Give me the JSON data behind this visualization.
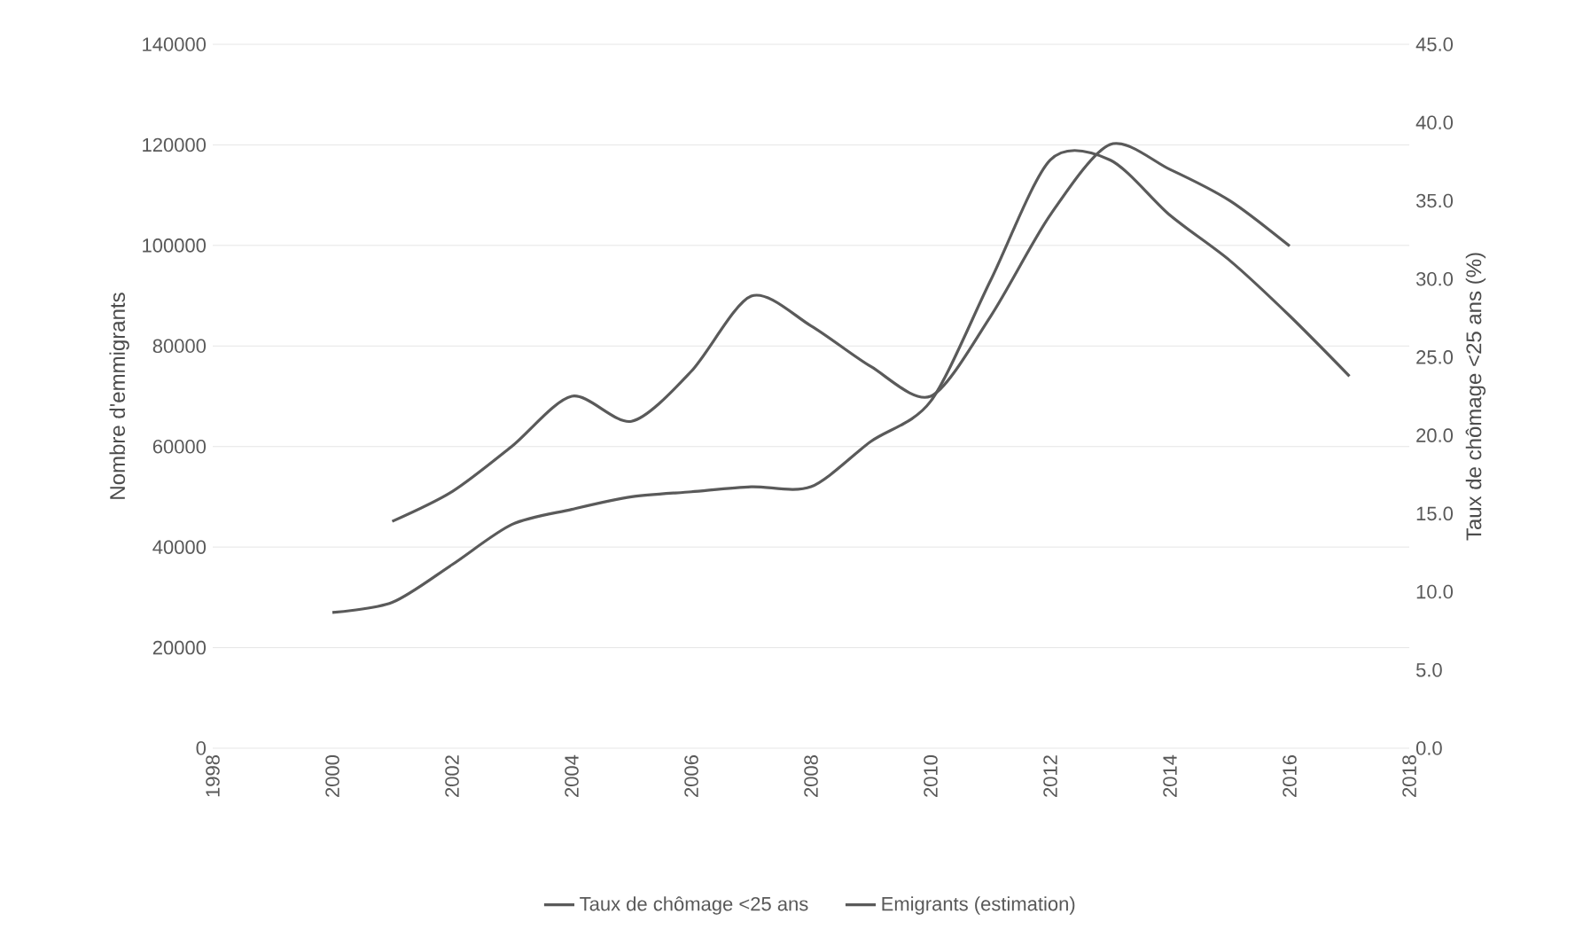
{
  "chart_data": {
    "type": "line",
    "ylabel": "Nombre d'emmigrants",
    "y2label": "Taux de chômage <25 ans (%)",
    "x": [
      2000,
      2001,
      2002,
      2003,
      2004,
      2005,
      2006,
      2007,
      2008,
      2009,
      2010,
      2011,
      2012,
      2013,
      2014,
      2015,
      2016,
      2017
    ],
    "series": [
      {
        "name": "Emigrants (estimation)",
        "color": "#5a5a5a",
        "values": [
          27000,
          29000,
          36500,
          44500,
          47500,
          50000,
          51000,
          52000,
          52000,
          61000,
          69000,
          93000,
          117000,
          117000,
          106000,
          97000,
          86000,
          74000
        ]
      },
      {
        "name": "Taux de chômage <25 ans",
        "color": "#5a5a5a",
        "axis": "y2",
        "values": [
          null,
          14.5,
          16.4,
          19.3,
          22.5,
          20.9,
          24.1,
          28.9,
          27.0,
          24.4,
          22.5,
          27.6,
          34.1,
          38.6,
          37.0,
          35.0,
          32.1,
          null
        ]
      }
    ],
    "xlim": [
      1998,
      2018
    ],
    "xticks": [
      1998,
      2000,
      2002,
      2004,
      2006,
      2008,
      2010,
      2012,
      2014,
      2016,
      2018
    ],
    "ylim": [
      0,
      140000
    ],
    "yticks": [
      0,
      20000,
      40000,
      60000,
      80000,
      100000,
      120000,
      140000
    ],
    "y2lim": [
      0,
      45
    ],
    "y2ticks": [
      {
        "value": 0,
        "label": "0.0"
      },
      {
        "value": 5,
        "label": "5.0"
      },
      {
        "value": 10,
        "label": "10.0"
      },
      {
        "value": 15,
        "label": "15.0"
      },
      {
        "value": 20,
        "label": "20.0"
      },
      {
        "value": 25,
        "label": "25.0"
      },
      {
        "value": 30,
        "label": "30.0"
      },
      {
        "value": 35,
        "label": "35.0"
      },
      {
        "value": 40,
        "label": "40.0"
      },
      {
        "value": 45,
        "label": "45.0"
      }
    ],
    "grid": "y",
    "legend": "bottom",
    "marker": "none",
    "line_style": "solid"
  }
}
